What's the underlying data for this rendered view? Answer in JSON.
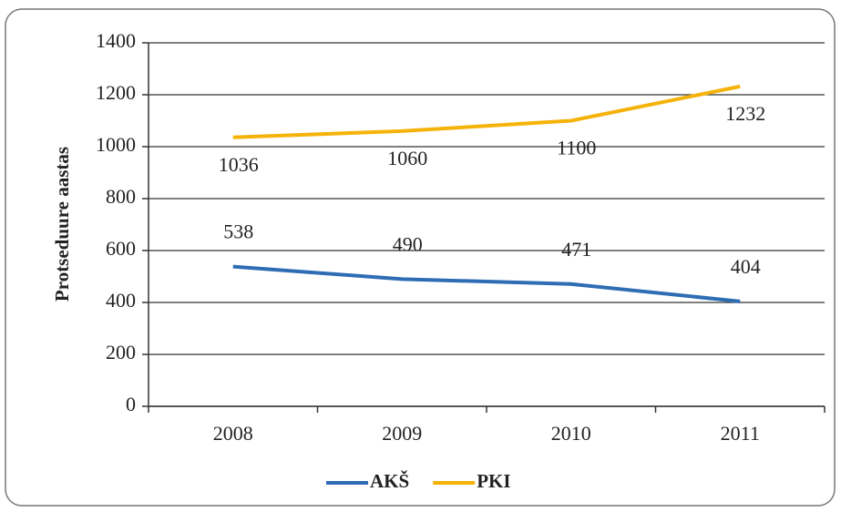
{
  "chart_data": {
    "type": "line",
    "y_label": "Protseduure aastas",
    "categories": [
      "2008",
      "2009",
      "2010",
      "2011"
    ],
    "series": [
      {
        "name": "AKŠ",
        "color": "#2e6db4",
        "values": [
          538,
          490,
          471,
          404
        ]
      },
      {
        "name": "PKI",
        "color": "#f5b30a",
        "values": [
          1036,
          1060,
          1100,
          1232
        ]
      }
    ],
    "ylim": [
      0,
      1400
    ],
    "yticks": [
      0,
      200,
      400,
      600,
      800,
      1000,
      1200,
      1400
    ],
    "grid": true,
    "legend": "bottom"
  }
}
